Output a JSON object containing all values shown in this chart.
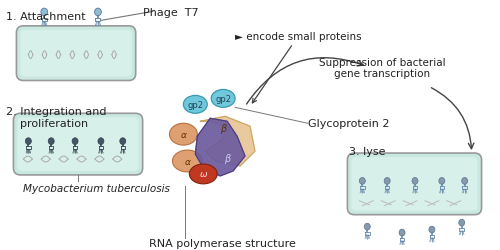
{
  "bg_color": "#ffffff",
  "cell_outer": "#c8e8e0",
  "cell_inner": "#d8f0ea",
  "phage_head_color": "#90bcd4",
  "phage_body_color": "#a8cce0",
  "rna_beta_color": "#e8c89a",
  "rna_beta2_color": "#6b5b9e",
  "rna_alpha_color": "#dea070",
  "rna_omega_color": "#c03820",
  "gp2_color": "#70c8dc",
  "dark_phage": "#556677",
  "lyse_phage": "#8899aa",
  "label_1": "1. Attachment",
  "label_2": "2. Integration and\n    proliferation",
  "label_3": "3. lyse",
  "phage_label": "Phage  T7",
  "encode_label": "► encode small proteins",
  "glyco_label": "Glycoprotein 2",
  "rna_label": "RNA polymerase structure",
  "myco_label": "Mycobacterium tuberculosis",
  "suppression_label": "Suppression of bacterial\ngene transcription",
  "alpha_label": "α",
  "beta_label": "β",
  "omega_label": "ω",
  "gp2_text": "gp2",
  "arrow_color": "#444444",
  "line_color": "#777777"
}
